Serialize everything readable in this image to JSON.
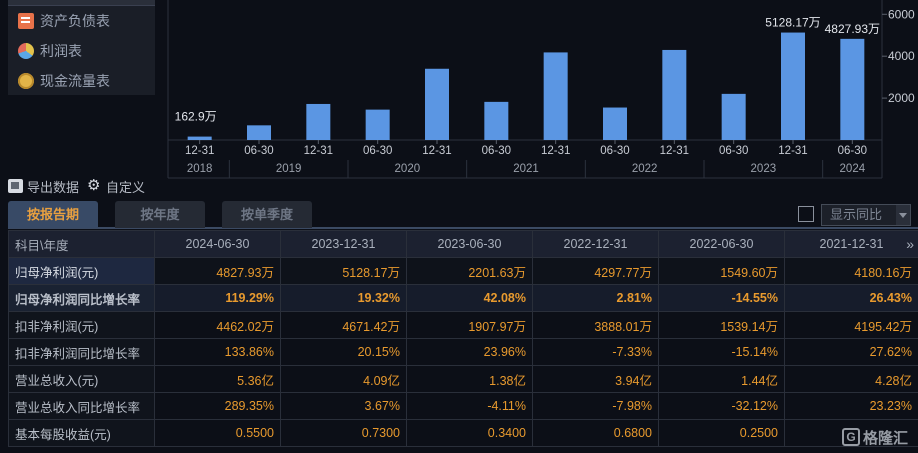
{
  "sidebar": {
    "items": [
      {
        "label": "资产负债表",
        "icon": "document-icon"
      },
      {
        "label": "利润表",
        "icon": "pie-chart-icon"
      },
      {
        "label": "现金流量表",
        "icon": "coin-stack-icon"
      }
    ]
  },
  "chart_data": {
    "type": "bar",
    "categories": [
      "12-31",
      "06-30",
      "12-31",
      "06-30",
      "12-31",
      "06-30",
      "12-31",
      "06-30",
      "12-31",
      "06-30",
      "12-31",
      "06-30"
    ],
    "years": [
      "2018",
      "2019",
      "2020",
      "2021",
      "2022",
      "2023",
      "2024"
    ],
    "values": [
      162.9,
      700,
      1720,
      1450,
      3400,
      1820,
      4180.16,
      1549.6,
      4297.77,
      2201.63,
      5128.17,
      4827.93
    ],
    "labels": {
      "0": "162.9万",
      "10": "5128.17万",
      "11": "4827.93万"
    },
    "yticks": [
      "2000",
      "4000",
      "6000"
    ],
    "ylim": [
      0,
      6300
    ],
    "bar_color": "#5b96e3"
  },
  "toolbar": {
    "export_label": "导出数据",
    "custom_label": "自定义"
  },
  "tabs": [
    {
      "label": "按报告期",
      "active": true
    },
    {
      "label": "按年度",
      "active": false
    },
    {
      "label": "按单季度",
      "active": false
    }
  ],
  "compare": {
    "label": "显示同比"
  },
  "table": {
    "corner": "科目\\年度",
    "more": "»",
    "columns": [
      "2024-06-30",
      "2023-12-31",
      "2023-06-30",
      "2022-12-31",
      "2022-06-30",
      "2021-12-31"
    ],
    "rows": [
      {
        "label": "归母净利润(元)",
        "values": [
          "4827.93万",
          "5128.17万",
          "2201.63万",
          "4297.77万",
          "1549.60万",
          "4180.16万"
        ]
      },
      {
        "label": "归母净利润同比增长率",
        "values": [
          "119.29%",
          "19.32%",
          "42.08%",
          "2.81%",
          "-14.55%",
          "26.43%"
        ]
      },
      {
        "label": "扣非净利润(元)",
        "values": [
          "4462.02万",
          "4671.42万",
          "1907.97万",
          "3888.01万",
          "1539.14万",
          "4195.42万"
        ]
      },
      {
        "label": "扣非净利润同比增长率",
        "values": [
          "133.86%",
          "20.15%",
          "23.96%",
          "-7.33%",
          "-15.14%",
          "27.62%"
        ]
      },
      {
        "label": "营业总收入(元)",
        "values": [
          "5.36亿",
          "4.09亿",
          "1.38亿",
          "3.94亿",
          "1.44亿",
          "4.28亿"
        ]
      },
      {
        "label": "营业总收入同比增长率",
        "values": [
          "289.35%",
          "3.67%",
          "-4.11%",
          "-7.98%",
          "-32.12%",
          "23.23%"
        ]
      },
      {
        "label": "基本每股收益(元)",
        "values": [
          "0.5500",
          "0.7300",
          "0.3400",
          "0.6800",
          "0.2500",
          ""
        ]
      }
    ]
  },
  "watermark": {
    "text": "格隆汇",
    "logo": "G"
  }
}
